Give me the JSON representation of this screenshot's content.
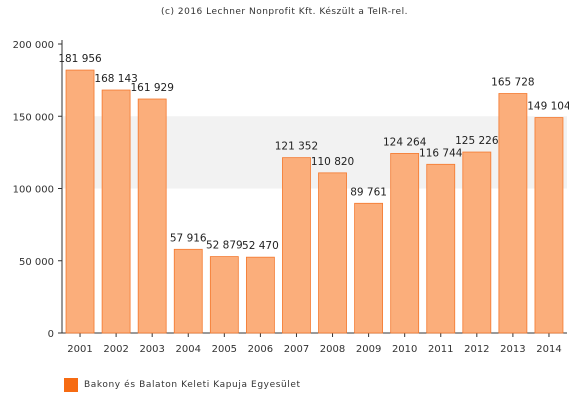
{
  "credit": "(c) 2016 Lechner Nonprofit Kft. Készült a TeIR-rel.",
  "colors": {
    "bar_fill": "#fbae7b",
    "bar_stroke": "#f4782d",
    "legend_swatch": "#f66b12",
    "band": "#f2f2f2"
  },
  "chart_data": {
    "type": "bar",
    "categories": [
      "2001",
      "2002",
      "2003",
      "2004",
      "2005",
      "2006",
      "2007",
      "2008",
      "2009",
      "2010",
      "2011",
      "2012",
      "2013",
      "2014"
    ],
    "series": [
      {
        "name": "Bakony és Balaton Keleti Kapuja Egyesület",
        "values": [
          181956,
          168143,
          161929,
          57916,
          52879,
          52470,
          121352,
          110820,
          89761,
          124264,
          116744,
          125226,
          165728,
          149104
        ],
        "labels": [
          "181 956",
          "168 143",
          "161 929",
          "57 916",
          "52 879",
          "52 470",
          "121 352",
          "110 820",
          "89 761",
          "124 264",
          "116 744",
          "125 226",
          "165 728",
          "149 104"
        ]
      }
    ],
    "ylim": [
      0,
      200000
    ],
    "yticks": [
      0,
      50000,
      100000,
      150000,
      200000
    ],
    "ytick_labels": [
      "0",
      "50 000",
      "100 000",
      "150 000",
      "200 000"
    ],
    "shaded_band": [
      100000,
      150000
    ],
    "title": "",
    "xlabel": "",
    "ylabel": "",
    "legend": "bottom-left",
    "grid": false
  }
}
